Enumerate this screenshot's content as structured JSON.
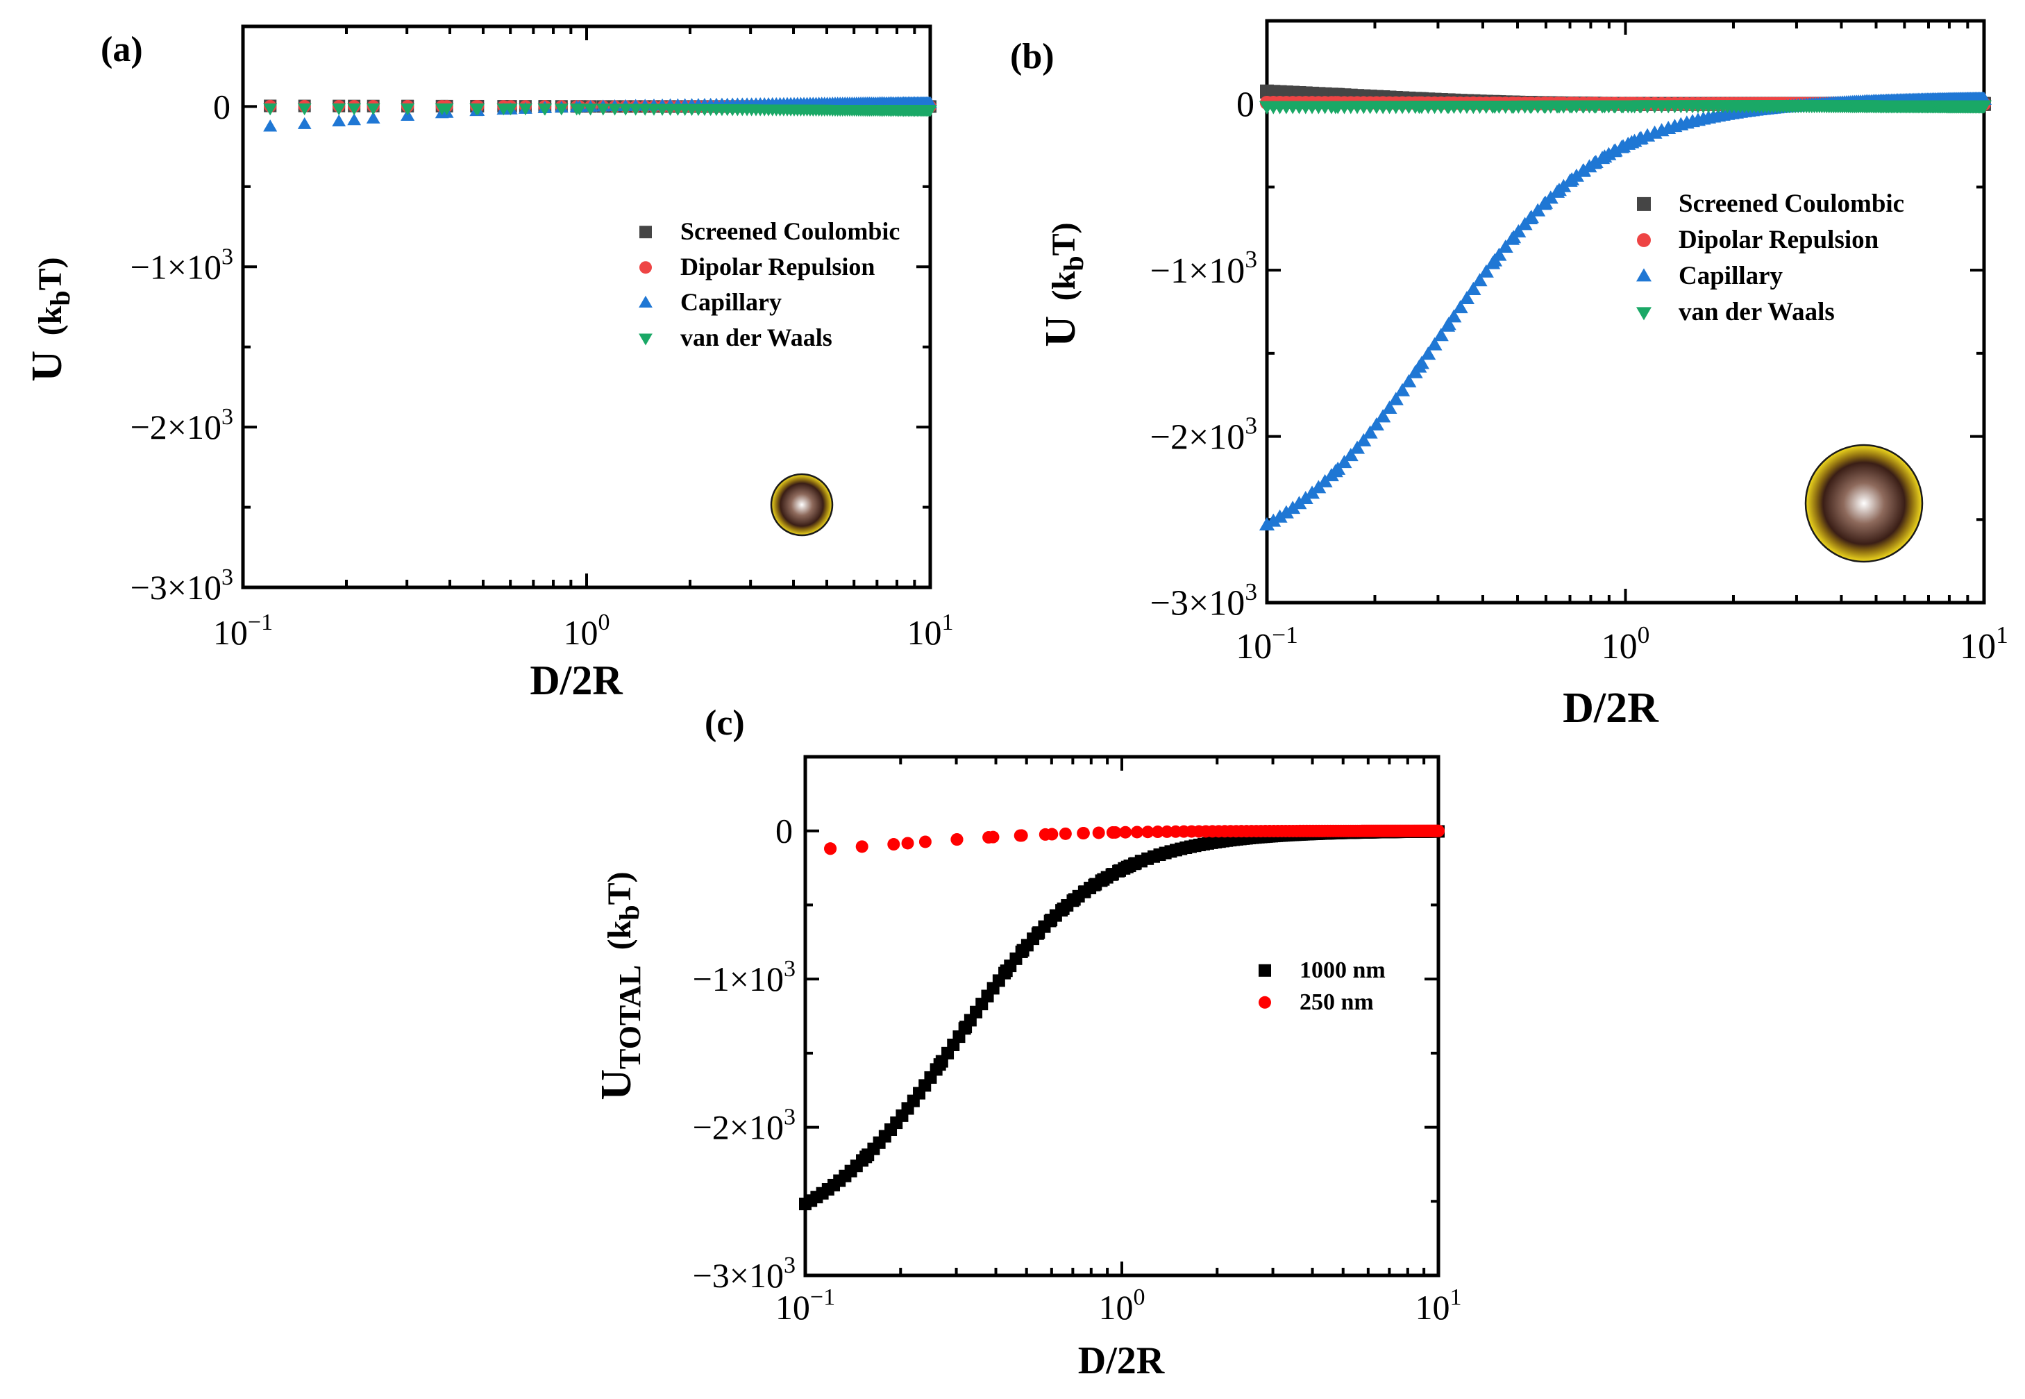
{
  "colors": {
    "coulombic": "#454545",
    "dipolar": "#ee4444",
    "capillary": "#1f77d4",
    "vdw": "#1aa866",
    "total_1000": "#000000",
    "total_250": "#ff0000",
    "particle_core": "#7a4a3a",
    "particle_shell": "#e6c81a"
  },
  "chart_data": [
    {
      "panel": "(a)",
      "type": "scatter",
      "xscale": "log",
      "xlim": [
        0.1,
        10
      ],
      "ylim": [
        -3000,
        500
      ],
      "xlabel": "D/2R",
      "ylabel_main": "U",
      "ylabel_paren": "(k",
      "ylabel_sub": "b",
      "ylabel_end": "T)",
      "xticks": [
        {
          "mantissa": "10",
          "exp": "−1"
        },
        {
          "mantissa": "10",
          "exp": "0"
        },
        {
          "mantissa": "10",
          "exp": "1"
        }
      ],
      "yticks": [
        {
          "base": "0",
          "exp": ""
        },
        {
          "base": "−1×10",
          "exp": "3"
        },
        {
          "base": "−2×10",
          "exp": "3"
        },
        {
          "base": "−3×10",
          "exp": "3"
        }
      ],
      "legend": [
        "Screened Coulombic",
        "Dipolar Repulsion",
        "Capillary",
        "van der Waals"
      ],
      "series": [
        {
          "name": "Screened Coulombic",
          "marker": "square",
          "x_range": [
            0.12,
            10
          ],
          "n": 110,
          "form": "decay",
          "y0": 5,
          "tau": 0.5
        },
        {
          "name": "Dipolar Repulsion",
          "marker": "circle",
          "x_range": [
            0.12,
            10
          ],
          "n": 110,
          "form": "decay",
          "y0": 3,
          "tau": 0.5
        },
        {
          "name": "Capillary",
          "marker": "triangle-up",
          "x_range": [
            0.12,
            10
          ],
          "n": 110,
          "form": "capillary",
          "amp": -170,
          "xc": 0.22,
          "p": 1.8,
          "tail": 20
        },
        {
          "name": "van der Waals",
          "marker": "triangle-down",
          "x_range": [
            0.12,
            10
          ],
          "n": 110,
          "form": "decay",
          "y0": -10,
          "tau": 1.0,
          "tail": -20
        }
      ],
      "particle": "small"
    },
    {
      "panel": "(b)",
      "type": "scatter",
      "xscale": "log",
      "xlim": [
        0.1,
        10
      ],
      "ylim": [
        -3000,
        500
      ],
      "xlabel": "D/2R",
      "ylabel_main": "U",
      "ylabel_paren": "(k",
      "ylabel_sub": "b",
      "ylabel_end": "T)",
      "xticks": [
        {
          "mantissa": "10",
          "exp": "−1"
        },
        {
          "mantissa": "10",
          "exp": "0"
        },
        {
          "mantissa": "10",
          "exp": "1"
        }
      ],
      "yticks": [
        {
          "base": "0",
          "exp": ""
        },
        {
          "base": "−1×10",
          "exp": "3"
        },
        {
          "base": "−2×10",
          "exp": "3"
        },
        {
          "base": "−3×10",
          "exp": "3"
        }
      ],
      "legend": [
        "Screened Coulombic",
        "Dipolar Repulsion",
        "Capillary",
        "van der Waals"
      ],
      "series": [
        {
          "name": "Screened Coulombic",
          "marker": "square",
          "x_range": [
            0.1,
            10
          ],
          "n": 180,
          "form": "decay",
          "y0": 130,
          "tau": 0.18
        },
        {
          "name": "Dipolar Repulsion",
          "marker": "circle",
          "x_range": [
            0.1,
            10
          ],
          "n": 180,
          "form": "decay",
          "y0": 10,
          "tau": 0.3
        },
        {
          "name": "Capillary",
          "marker": "triangle-up",
          "x_range": [
            0.1,
            10
          ],
          "n": 180,
          "form": "capillary",
          "amp": -2850,
          "xc": 0.3,
          "p": 1.9,
          "tail": 30
        },
        {
          "name": "van der Waals",
          "marker": "triangle-down",
          "x_range": [
            0.1,
            10
          ],
          "n": 180,
          "form": "decay",
          "y0": -15,
          "tau": 1.0,
          "tail": -10
        }
      ],
      "particle": "large"
    },
    {
      "panel": "(c)",
      "type": "scatter",
      "xscale": "log",
      "xlim": [
        0.1,
        10
      ],
      "ylim": [
        -3000,
        500
      ],
      "xlabel": "D/2R",
      "ylabel_main": "U",
      "ylabel_sub": "TOTAL",
      "ylabel_paren": "(k",
      "ylabel_sub2": "b",
      "ylabel_end": "T)",
      "xticks": [
        {
          "mantissa": "10",
          "exp": "−1"
        },
        {
          "mantissa": "10",
          "exp": "0"
        },
        {
          "mantissa": "10",
          "exp": "1"
        }
      ],
      "yticks": [
        {
          "base": "0",
          "exp": ""
        },
        {
          "base": "−1×10",
          "exp": "3"
        },
        {
          "base": "−2×10",
          "exp": "3"
        },
        {
          "base": "−3×10",
          "exp": "3"
        }
      ],
      "legend": [
        "1000 nm",
        "250 nm"
      ],
      "series": [
        {
          "name": "1000 nm",
          "marker": "square",
          "x_range": [
            0.1,
            10
          ],
          "n": 180,
          "form": "capillary",
          "amp": -2830,
          "xc": 0.3,
          "p": 1.9,
          "tail": 0
        },
        {
          "name": "250 nm",
          "marker": "circle",
          "x_range": [
            0.12,
            10
          ],
          "n": 110,
          "form": "capillary",
          "amp": -160,
          "xc": 0.22,
          "p": 1.8,
          "tail": 0
        }
      ]
    }
  ]
}
